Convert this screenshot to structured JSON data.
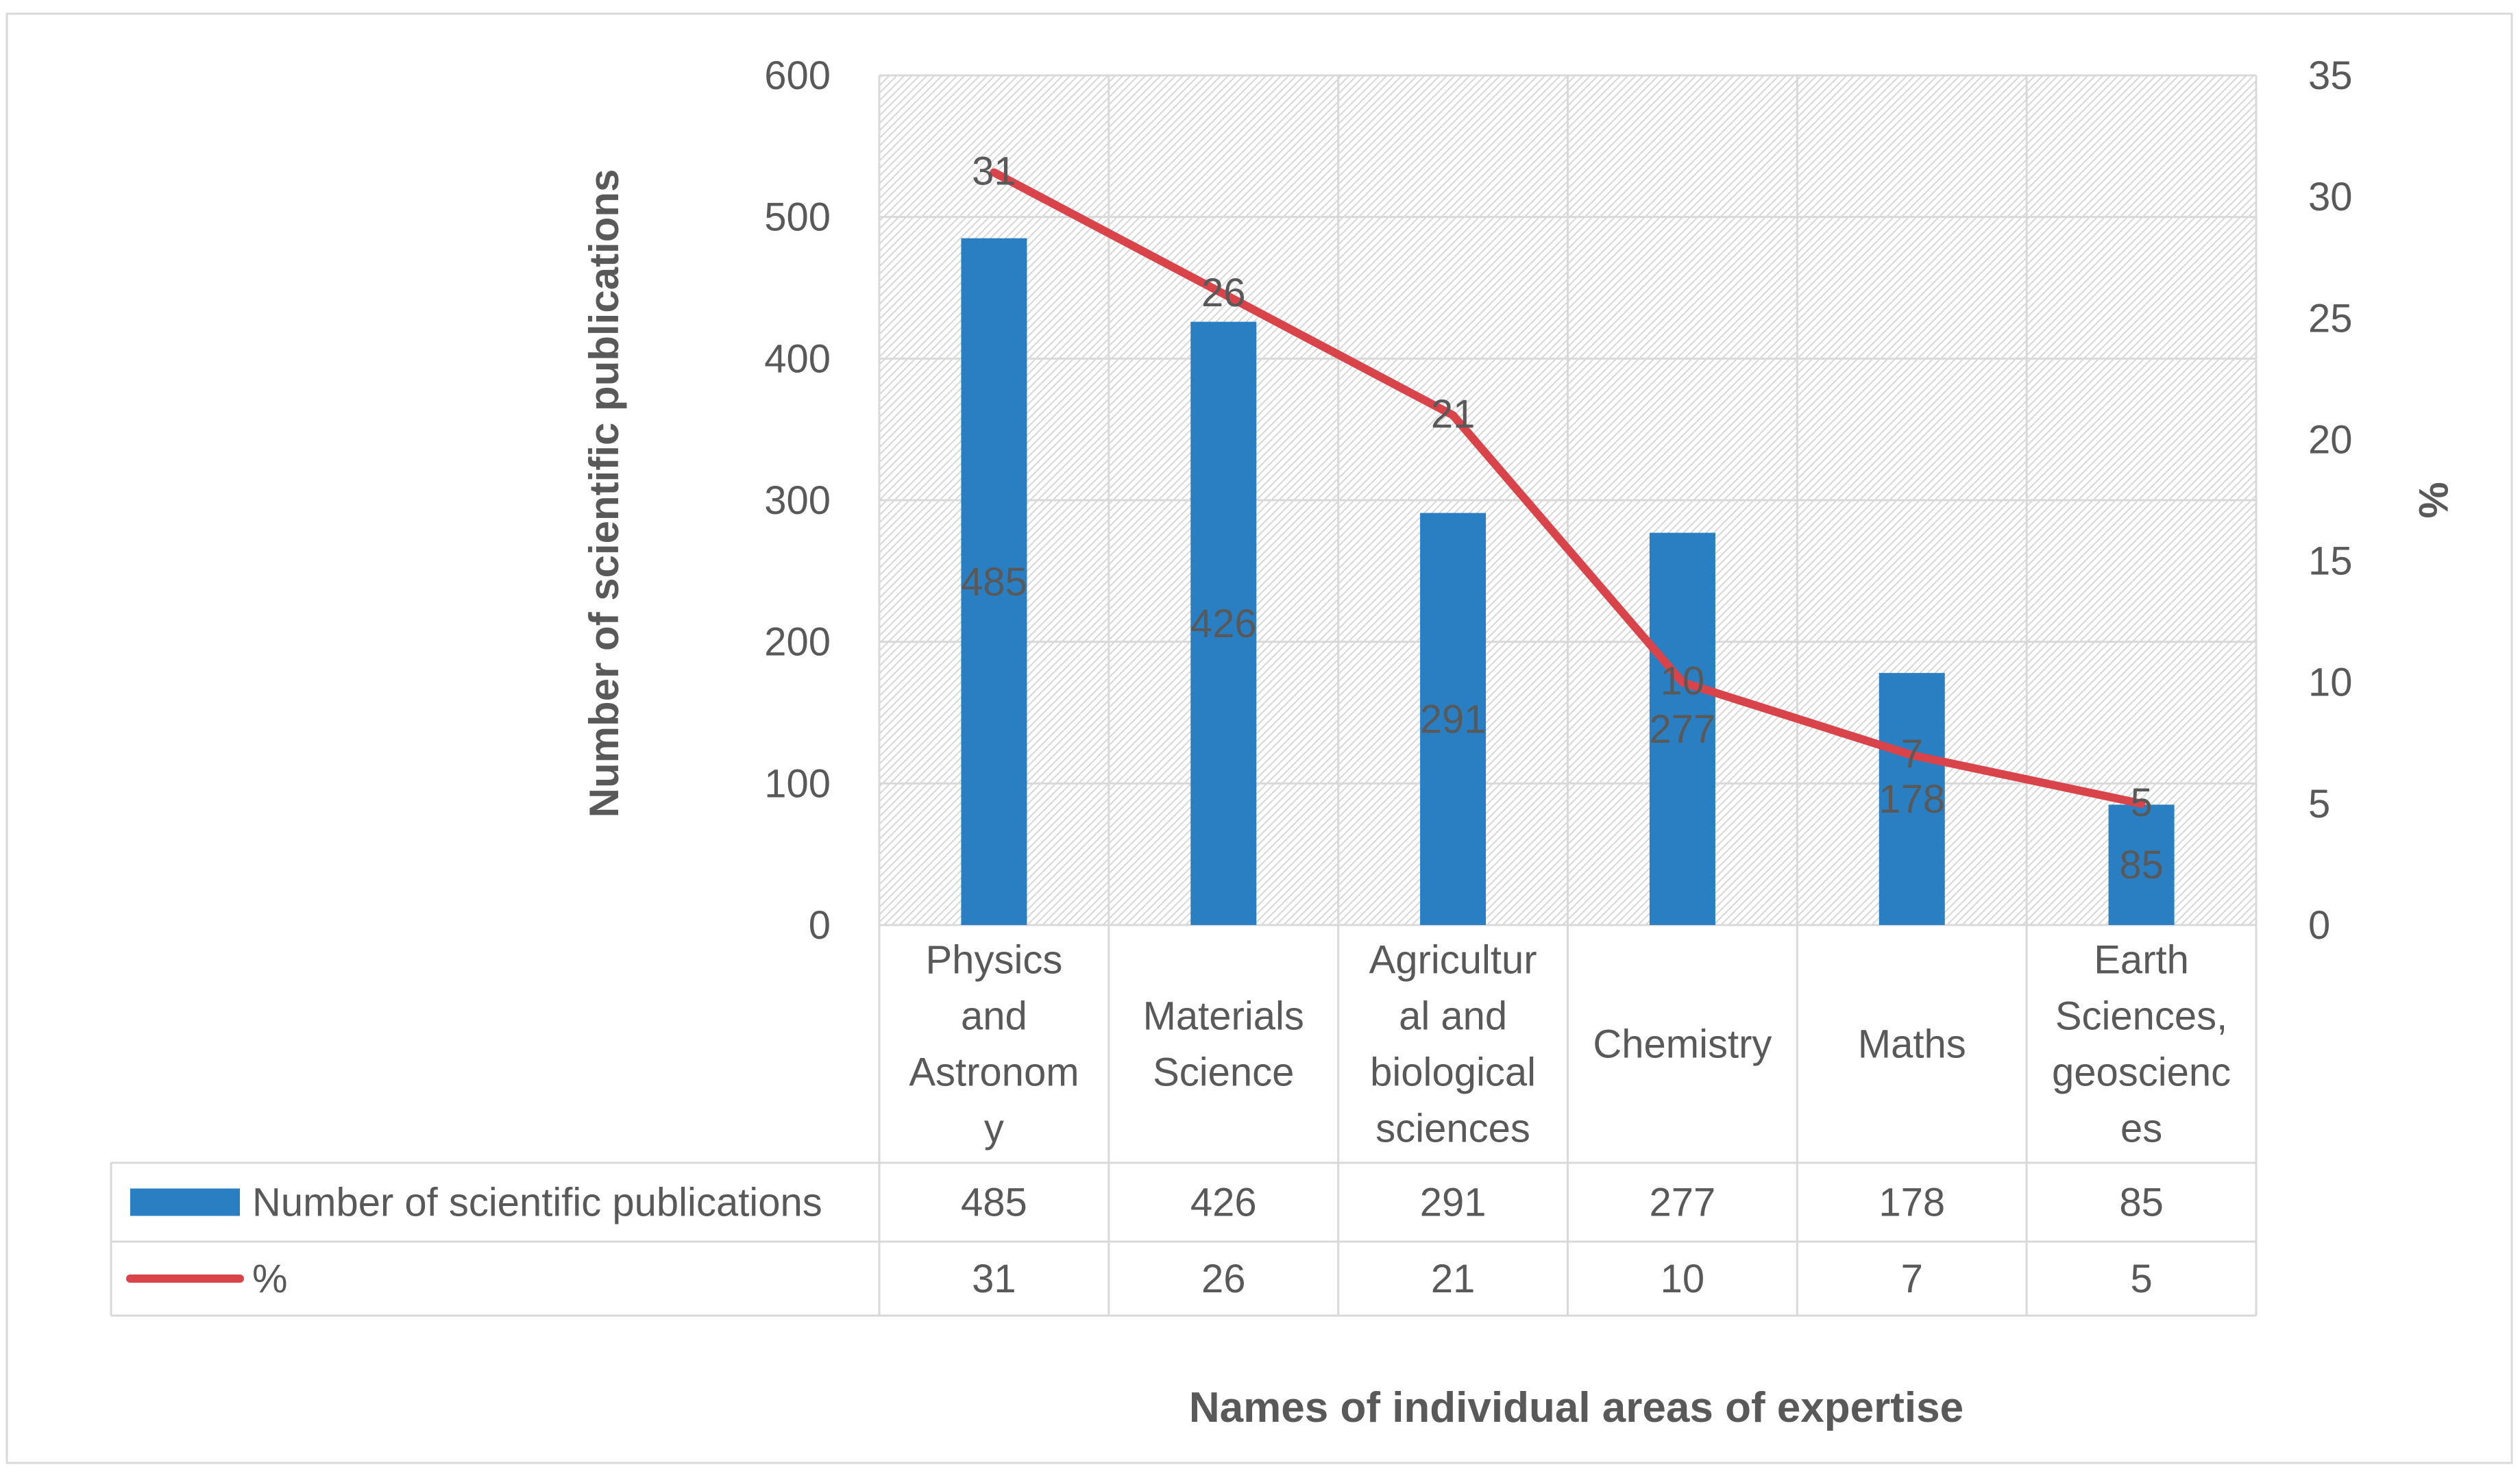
{
  "chart_data": {
    "type": "bar",
    "combo": "bar+line",
    "categories": [
      "Physics and Astronomy",
      "Materials Science",
      "Agricultural and biological sciences",
      "Chemistry",
      "Maths",
      "Earth Sciences, geosciences"
    ],
    "category_lines": [
      [
        "Physics",
        "and",
        "Astronom",
        "y"
      ],
      [
        "Materials",
        "Science"
      ],
      [
        "Agricultur",
        "al and",
        "biological",
        "sciences"
      ],
      [
        "Chemistry"
      ],
      [
        "Maths"
      ],
      [
        "Earth",
        "Sciences,",
        "geoscienc",
        "es"
      ]
    ],
    "series": [
      {
        "name": "Number of scientific publications",
        "kind": "bar",
        "axis": "left",
        "color": "#2a7fc2",
        "values": [
          485,
          426,
          291,
          277,
          178,
          85
        ]
      },
      {
        "name": "%",
        "kind": "line",
        "axis": "right",
        "color": "#d9444a",
        "values": [
          31,
          26,
          21,
          10,
          7,
          5
        ]
      }
    ],
    "xlabel": "Names of individual areas of expertise",
    "ylabel": "Number of scientific publications",
    "y2label": "%",
    "ylim": [
      0,
      600
    ],
    "y2lim": [
      0,
      35
    ],
    "yticks": [
      0,
      100,
      200,
      300,
      400,
      500,
      600
    ],
    "y2ticks": [
      0,
      5,
      10,
      15,
      20,
      25,
      30,
      35
    ],
    "grid": true,
    "data_table": true,
    "legend": "data-table-left"
  },
  "colors": {
    "text": "#595959",
    "grid": "#d9d9d9",
    "hatch": "#d6d6d6",
    "bar": "#2a7fc2",
    "line": "#d9444a"
  }
}
